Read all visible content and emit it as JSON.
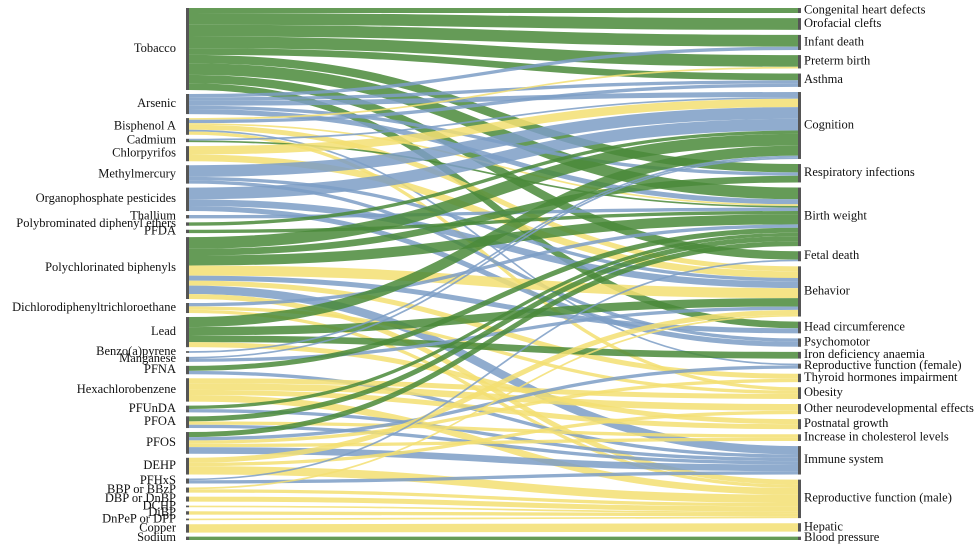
{
  "chart_data": {
    "type": "sankey",
    "sources": [
      "Tobacco",
      "Arsenic",
      "Bisphenol A",
      "Cadmium",
      "Chlorpyrifos",
      "Methylmercury",
      "Organophosphate pesticides",
      "Thallium",
      "Polybrominated diphenyl ethers",
      "PFDA",
      "Polychlorinated biphenyls",
      "Dichlorodiphenyltrichloroethane",
      "Lead",
      "Benzo(a)pyrene",
      "Manganese",
      "PFNA",
      "Hexachlorobenzene",
      "PFUnDA",
      "PFOA",
      "PFOS",
      "DEHP",
      "PFHxS",
      "BBP or BBzP",
      "DBP or DnBP",
      "DCHP",
      "DiBP",
      "DnPeP or DPP",
      "Copper",
      "Sodium"
    ],
    "targets": [
      "Congenital heart defects",
      "Orofacial clefts",
      "Infant death",
      "Preterm birth",
      "Asthma",
      "Cognition",
      "Respiratory infections",
      "Birth weight",
      "Fetal death",
      "Behavior",
      "Head circumference",
      "Psychomotor",
      "Iron deficiency anaemia",
      "Reproductive function (female)",
      "Thyroid hormones impairment",
      "Obesity",
      "Other neurodevelopmental effects",
      "Postnatal growth",
      "Increase in cholesterol levels",
      "Immune system",
      "Reproductive function (male)",
      "Hepatic",
      "Blood pressure"
    ],
    "links": [
      {
        "source": "Tobacco",
        "target": "Congenital heart defects",
        "value": 3,
        "color": "#4a8a3a"
      },
      {
        "source": "Tobacco",
        "target": "Orofacial clefts",
        "value": 7,
        "color": "#4a8a3a"
      },
      {
        "source": "Tobacco",
        "target": "Infant death",
        "value": 7,
        "color": "#4a8a3a"
      },
      {
        "source": "Tobacco",
        "target": "Preterm birth",
        "value": 7,
        "color": "#4a8a3a"
      },
      {
        "source": "Tobacco",
        "target": "Asthma",
        "value": 4,
        "color": "#4a8a3a"
      },
      {
        "source": "Tobacco",
        "target": "Respiratory infections",
        "value": 5,
        "color": "#4a8a3a"
      },
      {
        "source": "Tobacco",
        "target": "Birth weight",
        "value": 7,
        "color": "#4a8a3a"
      },
      {
        "source": "Tobacco",
        "target": "Fetal death",
        "value": 5,
        "color": "#4a8a3a"
      },
      {
        "source": "Tobacco",
        "target": "Head circumference",
        "value": 4,
        "color": "#4a8a3a"
      },
      {
        "source": "Arsenic",
        "target": "Infant death",
        "value": 2,
        "color": "#7d9dc6"
      },
      {
        "source": "Arsenic",
        "target": "Asthma",
        "value": 2,
        "color": "#7d9dc6"
      },
      {
        "source": "Arsenic",
        "target": "Cognition",
        "value": 3,
        "color": "#7d9dc6"
      },
      {
        "source": "Arsenic",
        "target": "Respiratory infections",
        "value": 2,
        "color": "#7d9dc6"
      },
      {
        "source": "Arsenic",
        "target": "Birth weight",
        "value": 3,
        "color": "#7d9dc6"
      },
      {
        "source": "Bisphenol A",
        "target": "Preterm birth",
        "value": 1,
        "color": "#f3df72"
      },
      {
        "source": "Bisphenol A",
        "target": "Asthma",
        "value": 2,
        "color": "#7d9dc6"
      },
      {
        "source": "Bisphenol A",
        "target": "Birth weight",
        "value": 1,
        "color": "#f3df72"
      },
      {
        "source": "Bisphenol A",
        "target": "Behavior",
        "value": 3,
        "color": "#f3df72"
      },
      {
        "source": "Bisphenol A",
        "target": "Reproductive function (female)",
        "value": 1,
        "color": "#7d9dc6"
      },
      {
        "source": "Bisphenol A",
        "target": "Obesity",
        "value": 2,
        "color": "#f3df72"
      },
      {
        "source": "Cadmium",
        "target": "Cognition",
        "value": 1,
        "color": "#7d9dc6"
      },
      {
        "source": "Cadmium",
        "target": "Birth weight",
        "value": 1,
        "color": "#4a8a3a"
      },
      {
        "source": "Chlorpyrifos",
        "target": "Cognition",
        "value": 5,
        "color": "#f3df72"
      },
      {
        "source": "Chlorpyrifos",
        "target": "Behavior",
        "value": 4,
        "color": "#f3df72"
      },
      {
        "source": "Methylmercury",
        "target": "Cognition",
        "value": 7,
        "color": "#7d9dc6"
      },
      {
        "source": "Methylmercury",
        "target": "Behavior",
        "value": 2,
        "color": "#7d9dc6"
      },
      {
        "source": "Methylmercury",
        "target": "Psychomotor",
        "value": 2,
        "color": "#7d9dc6"
      },
      {
        "source": "Organophosphate pesticides",
        "target": "Cognition",
        "value": 7,
        "color": "#7d9dc6"
      },
      {
        "source": "Organophosphate pesticides",
        "target": "Behavior",
        "value": 4,
        "color": "#7d9dc6"
      },
      {
        "source": "Organophosphate pesticides",
        "target": "Psychomotor",
        "value": 3,
        "color": "#7d9dc6"
      },
      {
        "source": "Thallium",
        "target": "Birth weight",
        "value": 2,
        "color": "#7d9dc6"
      },
      {
        "source": "Polybrominated diphenyl ethers",
        "target": "Cognition",
        "value": 2,
        "color": "#4a8a3a"
      },
      {
        "source": "PFDA",
        "target": "Birth weight",
        "value": 2,
        "color": "#4a8a3a"
      },
      {
        "source": "Polychlorinated biphenyls",
        "target": "Cognition",
        "value": 7,
        "color": "#4a8a3a"
      },
      {
        "source": "Polychlorinated biphenyls",
        "target": "Respiratory infections",
        "value": 4,
        "color": "#4a8a3a"
      },
      {
        "source": "Polychlorinated biphenyls",
        "target": "Birth weight",
        "value": 6,
        "color": "#4a8a3a"
      },
      {
        "source": "Polychlorinated biphenyls",
        "target": "Behavior",
        "value": 6,
        "color": "#f3df72"
      },
      {
        "source": "Polychlorinated biphenyls",
        "target": "Head circumference",
        "value": 3,
        "color": "#7d9dc6"
      },
      {
        "source": "Polychlorinated biphenyls",
        "target": "Thyroid hormones impairment",
        "value": 3,
        "color": "#f3df72"
      },
      {
        "source": "Polychlorinated biphenyls",
        "target": "Immune system",
        "value": 5,
        "color": "#7d9dc6"
      },
      {
        "source": "Polychlorinated biphenyls",
        "target": "Reproductive function (male)",
        "value": 3,
        "color": "#f3df72"
      },
      {
        "source": "Dichlorodiphenyltrichloroethane",
        "target": "Birth weight",
        "value": 2,
        "color": "#7d9dc6"
      },
      {
        "source": "Dichlorodiphenyltrichloroethane",
        "target": "Obesity",
        "value": 2,
        "color": "#f3df72"
      },
      {
        "source": "Dichlorodiphenyltrichloroethane",
        "target": "Reproductive function (male)",
        "value": 2,
        "color": "#f3df72"
      },
      {
        "source": "Lead",
        "target": "Cognition",
        "value": 6,
        "color": "#4a8a3a"
      },
      {
        "source": "Lead",
        "target": "Behavior",
        "value": 5,
        "color": "#4a8a3a"
      },
      {
        "source": "Lead",
        "target": "Iron deficiency anaemia",
        "value": 4,
        "color": "#4a8a3a"
      },
      {
        "source": "Lead",
        "target": "Postnatal growth",
        "value": 3,
        "color": "#f3df72"
      },
      {
        "source": "Benzo(a)pyrene",
        "target": "Cognition",
        "value": 1,
        "color": "#7d9dc6"
      },
      {
        "source": "Manganese",
        "target": "Cognition",
        "value": 1,
        "color": "#7d9dc6"
      },
      {
        "source": "Manganese",
        "target": "Behavior",
        "value": 2,
        "color": "#7d9dc6"
      },
      {
        "source": "PFNA",
        "target": "Birth weight",
        "value": 3,
        "color": "#4a8a3a"
      },
      {
        "source": "PFNA",
        "target": "Immune system",
        "value": 2,
        "color": "#7d9dc6"
      },
      {
        "source": "Hexachlorobenzene",
        "target": "Obesity",
        "value": 3,
        "color": "#f3df72"
      },
      {
        "source": "Hexachlorobenzene",
        "target": "Other neurodevelopmental effects",
        "value": 4,
        "color": "#f3df72"
      },
      {
        "source": "Hexachlorobenzene",
        "target": "Postnatal growth",
        "value": 3,
        "color": "#f3df72"
      },
      {
        "source": "Hexachlorobenzene",
        "target": "Reproductive function (male)",
        "value": 4,
        "color": "#f3df72"
      },
      {
        "source": "PFUnDA",
        "target": "Birth weight",
        "value": 2,
        "color": "#4a8a3a"
      },
      {
        "source": "PFUnDA",
        "target": "Immune system",
        "value": 2,
        "color": "#7d9dc6"
      },
      {
        "source": "PFOA",
        "target": "Birth weight",
        "value": 3,
        "color": "#4a8a3a"
      },
      {
        "source": "PFOA",
        "target": "Increase in cholesterol levels",
        "value": 2,
        "color": "#f3df72"
      },
      {
        "source": "PFOA",
        "target": "Immune system",
        "value": 2,
        "color": "#7d9dc6"
      },
      {
        "source": "PFOS",
        "target": "Birth weight",
        "value": 3,
        "color": "#4a8a3a"
      },
      {
        "source": "PFOS",
        "target": "Reproductive function (female)",
        "value": 2,
        "color": "#7d9dc6"
      },
      {
        "source": "PFOS",
        "target": "Thyroid hormones impairment",
        "value": 2,
        "color": "#f3df72"
      },
      {
        "source": "PFOS",
        "target": "Increase in cholesterol levels",
        "value": 2,
        "color": "#f3df72"
      },
      {
        "source": "PFOS",
        "target": "Immune system",
        "value": 4,
        "color": "#7d9dc6"
      },
      {
        "source": "DEHP",
        "target": "Behavior",
        "value": 3,
        "color": "#f3df72"
      },
      {
        "source": "DEHP",
        "target": "Other neurodevelopmental effects",
        "value": 2,
        "color": "#f3df72"
      },
      {
        "source": "DEHP",
        "target": "Reproductive function (male)",
        "value": 5,
        "color": "#f3df72"
      },
      {
        "source": "PFHxS",
        "target": "Fetal death",
        "value": 1,
        "color": "#7d9dc6"
      },
      {
        "source": "PFHxS",
        "target": "Immune system",
        "value": 2,
        "color": "#7d9dc6"
      },
      {
        "source": "BBP or BBzP",
        "target": "Behavior",
        "value": 1,
        "color": "#f3df72"
      },
      {
        "source": "BBP or BBzP",
        "target": "Reproductive function (male)",
        "value": 2,
        "color": "#f3df72"
      },
      {
        "source": "DBP or DnBP",
        "target": "Reproductive function (male)",
        "value": 3,
        "color": "#f3df72"
      },
      {
        "source": "DCHP",
        "target": "Reproductive function (male)",
        "value": 1,
        "color": "#f3df72"
      },
      {
        "source": "DiBP",
        "target": "Reproductive function (male)",
        "value": 2,
        "color": "#f3df72"
      },
      {
        "source": "DnPeP or DPP",
        "target": "Reproductive function (male)",
        "value": 1,
        "color": "#f3df72"
      },
      {
        "source": "Copper",
        "target": "Hepatic",
        "value": 5,
        "color": "#f3df72"
      },
      {
        "source": "Sodium",
        "target": "Blood pressure",
        "value": 2,
        "color": "#4a8a3a"
      }
    ]
  }
}
